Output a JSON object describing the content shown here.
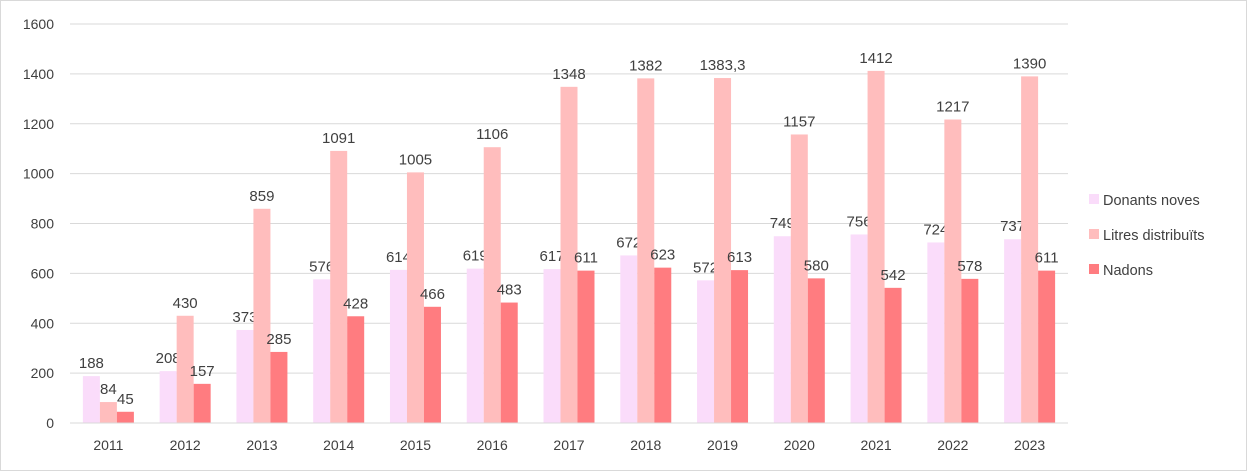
{
  "chart_data": {
    "type": "bar",
    "categories": [
      "2011",
      "2012",
      "2013",
      "2014",
      "2015",
      "2016",
      "2017",
      "2018",
      "2019",
      "2020",
      "2021",
      "2022",
      "2023"
    ],
    "series": [
      {
        "name": "Donants noves",
        "color": "#FADCFA",
        "values": [
          188,
          208,
          373,
          576,
          614,
          619,
          617,
          672,
          572,
          749,
          756,
          724,
          737
        ]
      },
      {
        "name": "Litres distribuïts",
        "color": "#FFBDBD",
        "values": [
          84,
          430,
          859,
          1091,
          1005,
          1106,
          1348,
          1382,
          1383.3,
          1157,
          1412,
          1217,
          1390
        ]
      },
      {
        "name": "Nadons",
        "color": "#FF7C80",
        "values": [
          45,
          157,
          285,
          428,
          466,
          483,
          611,
          623,
          613,
          580,
          542,
          578,
          611
        ]
      }
    ],
    "value_labels": [
      [
        "188",
        "208",
        "373",
        "576",
        "614",
        "619",
        "617",
        "672",
        "572",
        "749",
        "756",
        "724",
        "737"
      ],
      [
        "84",
        "430",
        "859",
        "1091",
        "1005",
        "1106",
        "1348",
        "1382",
        "1383,3",
        "1157",
        "1412",
        "1217",
        "1390"
      ],
      [
        "45",
        "157",
        "285",
        "428",
        "466",
        "483",
        "611",
        "623",
        "613",
        "580",
        "542",
        "578",
        "611"
      ]
    ],
    "yticks": [
      "0",
      "200",
      "400",
      "600",
      "800",
      "1000",
      "1200",
      "1400",
      "1600"
    ],
    "ylim": [
      0,
      1600
    ],
    "grid": true,
    "legend": "right",
    "title": "",
    "xlabel": "",
    "ylabel": ""
  }
}
